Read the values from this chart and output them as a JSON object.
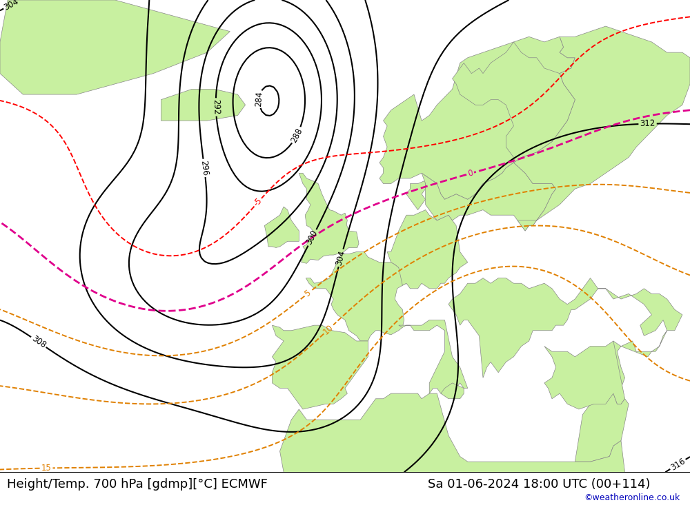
{
  "title_left": "Height/Temp. 700 hPa [gdmp][°C] ECMWF",
  "title_right": "Sa 01-06-2024 18:00 UTC (00+114)",
  "credit": "©weatheronline.co.uk",
  "figsize": [
    10.0,
    7.33
  ],
  "dpi": 100,
  "land_color": "#c8f0a0",
  "sea_color": "#dcdcdc",
  "coast_color": "#888888",
  "title_fontsize": 13,
  "credit_fontsize": 9,
  "lon_min": -45,
  "lon_max": 45,
  "lat_min": 30,
  "lat_max": 75
}
